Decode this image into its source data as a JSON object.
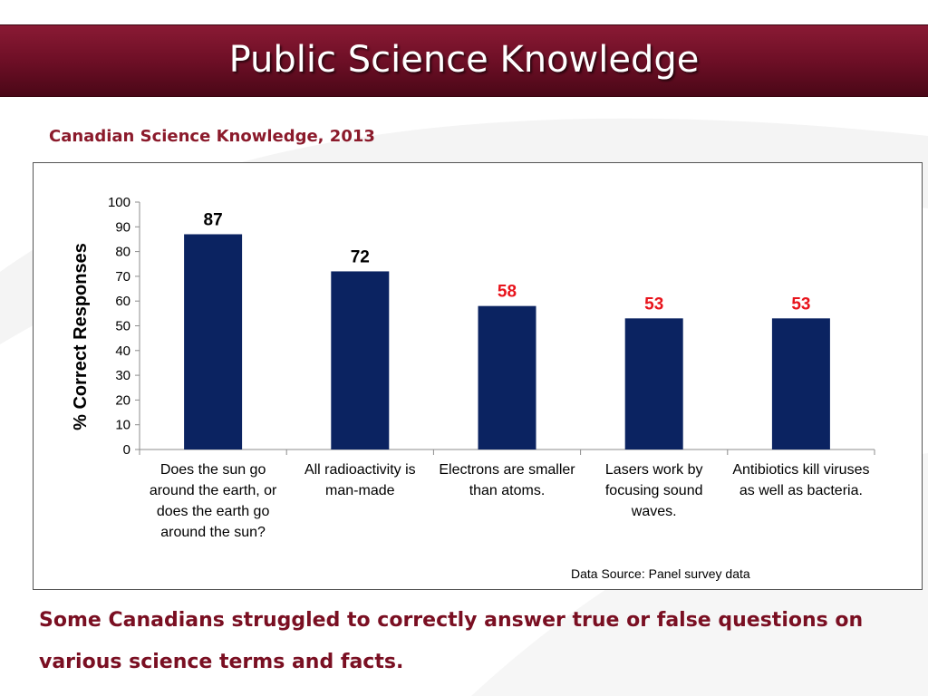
{
  "slide": {
    "title": "Public Science Knowledge",
    "subtitle": "Canadian Science Knowledge, 2013",
    "source_note": "Data Source: Panel survey data",
    "caption": "Some Canadians struggled to correctly answer true or false questions on various science terms and facts."
  },
  "colors": {
    "title_bar": "#6e0f26",
    "subtitle_text": "#8b1a2b",
    "caption_text": "#7a0f22",
    "bar": "#0b2361",
    "label_normal": "#000000",
    "label_highlight": "#e8141c"
  },
  "chart_data": {
    "type": "bar",
    "title": "",
    "xlabel": "",
    "ylabel": "% Correct Responses",
    "ylim": [
      0,
      100
    ],
    "yticks": [
      0,
      10,
      20,
      30,
      40,
      50,
      60,
      70,
      80,
      90,
      100
    ],
    "categories": [
      "Does the sun go around the earth, or does the earth go around the sun?",
      "All radioactivity is man-made",
      "Electrons are smaller than atoms.",
      "Lasers work by focusing sound waves.",
      "Antibiotics kill viruses as well as bacteria."
    ],
    "values": [
      87,
      72,
      58,
      53,
      53
    ],
    "label_colors": [
      "#000000",
      "#000000",
      "#e8141c",
      "#e8141c",
      "#e8141c"
    ],
    "grid": false,
    "legend": "none"
  }
}
